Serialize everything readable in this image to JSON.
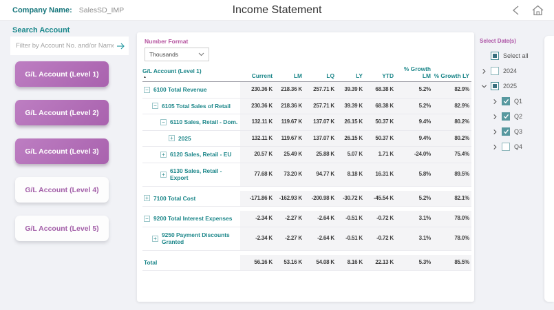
{
  "header": {
    "company_label": "Company Name:",
    "company_value": "SalesSD_IMP",
    "title": "Income Statement"
  },
  "sidebar": {
    "search_label": "Search Account",
    "search_placeholder": "Filter by Account No. and/or Name",
    "buttons": [
      {
        "label": "G/L Account (Level 1)",
        "active": true
      },
      {
        "label": "G/L Account (Level 2)",
        "active": true
      },
      {
        "label": "G/L Account (Level 3)",
        "active": true
      },
      {
        "label": "G/L Account (Level 4)",
        "active": false
      },
      {
        "label": "G/L Account (Level 5)",
        "active": false
      }
    ]
  },
  "main": {
    "number_format_label": "Number Format",
    "number_format_value": "Thousands",
    "table": {
      "columns": [
        "G/L Account (Level 1)",
        "Current",
        "LM",
        "LQ",
        "LY",
        "YTD",
        "% Growth LM",
        "% Growth LY"
      ],
      "sort_column": "G/L Account (Level 1)",
      "rows": [
        {
          "name": "6100 Total Revenue",
          "level": 0,
          "expand": "minus",
          "values": [
            "230.36 K",
            "218.36 K",
            "257.71 K",
            "39.39 K",
            "68.38 K",
            "5.2%",
            "82.9%"
          ]
        },
        {
          "name": "6105 Total Sales of Retail",
          "level": 1,
          "expand": "minus",
          "values": [
            "230.36 K",
            "218.36 K",
            "257.71 K",
            "39.39 K",
            "68.38 K",
            "5.2%",
            "82.9%"
          ]
        },
        {
          "name": "6110 Sales, Retail - Dom.",
          "level": 2,
          "expand": "minus",
          "values": [
            "132.11 K",
            "119.67 K",
            "137.07 K",
            "26.15 K",
            "50.37 K",
            "9.4%",
            "80.2%"
          ]
        },
        {
          "name": "2025",
          "level": 3,
          "expand": "plus",
          "values": [
            "132.11 K",
            "119.67 K",
            "137.07 K",
            "26.15 K",
            "50.37 K",
            "9.4%",
            "80.2%"
          ]
        },
        {
          "name": "6120 Sales, Retail - EU",
          "level": 2,
          "expand": "plus",
          "values": [
            "20.57 K",
            "25.49 K",
            "25.88 K",
            "5.07 K",
            "1.71 K",
            "-24.0%",
            "75.4%"
          ]
        },
        {
          "name": "6130 Sales, Retail - Export",
          "level": 2,
          "expand": "plus",
          "group_end": true,
          "values": [
            "77.68 K",
            "73.20 K",
            "94.77 K",
            "8.18 K",
            "16.31 K",
            "5.8%",
            "89.5%"
          ]
        },
        {
          "name": "7100 Total Cost",
          "level": 0,
          "expand": "plus",
          "group_end": true,
          "values": [
            "-171.86 K",
            "-162.93 K",
            "-200.98 K",
            "-30.72 K",
            "-45.54 K",
            "5.2%",
            "82.1%"
          ]
        },
        {
          "name": "9200 Total Interest Expenses",
          "level": 0,
          "expand": "minus",
          "values": [
            "-2.34 K",
            "-2.27 K",
            "-2.64 K",
            "-0.51 K",
            "-0.72 K",
            "3.1%",
            "78.0%"
          ]
        },
        {
          "name": "9250 Payment Discounts Granted",
          "level": 1,
          "expand": "plus",
          "group_end": true,
          "values": [
            "-2.34 K",
            "-2.27 K",
            "-2.64 K",
            "-0.51 K",
            "-0.72 K",
            "3.1%",
            "78.0%"
          ]
        },
        {
          "name": "Total",
          "level": 0,
          "expand": "none",
          "is_total": true,
          "values": [
            "56.16 K",
            "53.16 K",
            "54.08 K",
            "8.16 K",
            "22.13 K",
            "5.3%",
            "85.5%"
          ]
        }
      ]
    }
  },
  "date_panel": {
    "label": "Select Date(s)",
    "items": [
      {
        "label": "Select all",
        "chevron": "none",
        "state": "partial",
        "indent": 0
      },
      {
        "label": "2024",
        "chevron": "right",
        "state": "unchecked",
        "indent": 0
      },
      {
        "label": "2025",
        "chevron": "down",
        "state": "partial",
        "indent": 0
      },
      {
        "label": "Q1",
        "chevron": "right",
        "state": "checked",
        "indent": 1
      },
      {
        "label": "Q2",
        "chevron": "right",
        "state": "checked",
        "indent": 1
      },
      {
        "label": "Q3",
        "chevron": "right",
        "state": "checked",
        "indent": 1
      },
      {
        "label": "Q4",
        "chevron": "right",
        "state": "unchecked",
        "indent": 1
      }
    ]
  },
  "colors": {
    "teal_accent": "#1d878a",
    "purple_button": "#b06ab5",
    "magenta_label": "#ad53a5",
    "value_text": "#3c3c3c",
    "page_background": "#f1f2f6"
  }
}
